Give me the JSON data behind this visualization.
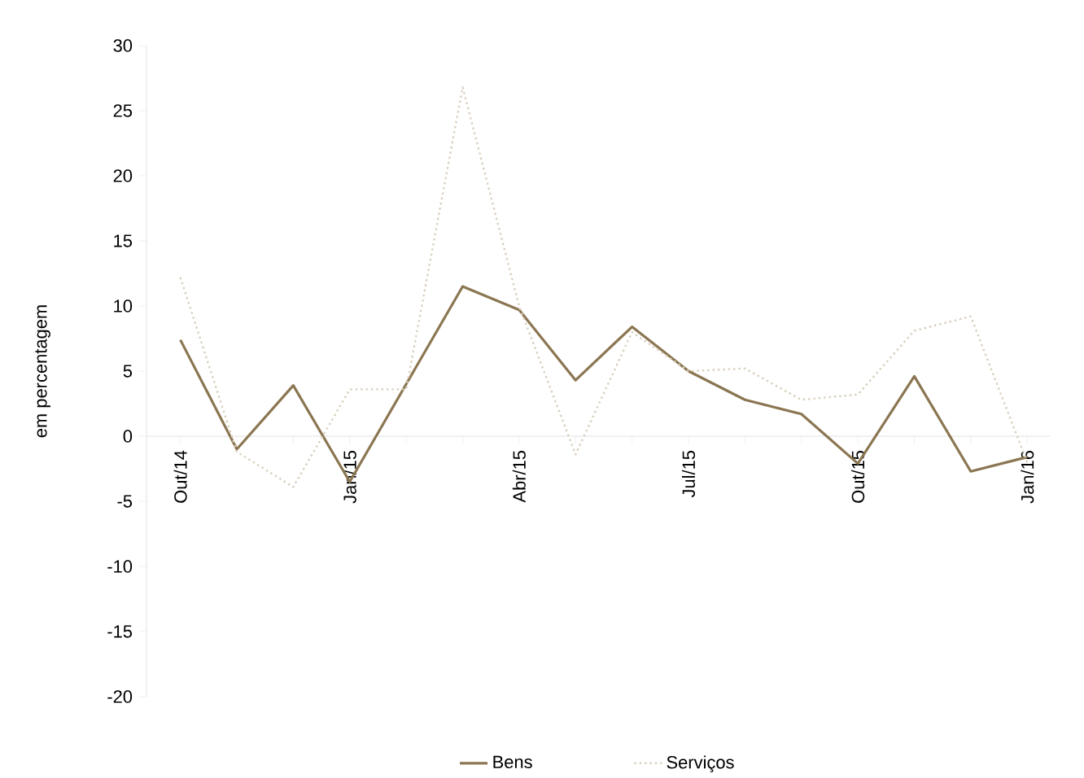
{
  "chart_data": {
    "type": "line",
    "ylabel": "em percentagem",
    "categories": [
      "Out/14",
      null,
      null,
      "Jan/15",
      null,
      null,
      "Abr/15",
      null,
      null,
      "Jul/15",
      null,
      null,
      "Out/15",
      null,
      null,
      "Jan/16"
    ],
    "series": [
      {
        "name": "Bens",
        "color": "#8b7652",
        "line_style": "solid",
        "values": [
          7.4,
          -1,
          3.9,
          -3.5,
          4,
          11.5,
          9.7,
          4.3,
          8.4,
          5.0,
          2.8,
          1.7,
          -2.1,
          4.6,
          -2.7,
          -1.6
        ]
      },
      {
        "name": "Serviços",
        "color": "#d8cfbd",
        "line_style": "dotted",
        "values": [
          12.2,
          -1.2,
          -3.9,
          3.6,
          3.6,
          26.8,
          10,
          -1.4,
          8,
          5.0,
          5.2,
          2.8,
          3.2,
          8.1,
          9.2,
          -2
        ]
      }
    ],
    "ylim": [
      -20,
      30
    ],
    "yticks": [
      -20,
      -15,
      -10,
      -5,
      0,
      5,
      10,
      15,
      20,
      25,
      30
    ],
    "legend": "bottom",
    "grid": false,
    "marker": "none"
  }
}
